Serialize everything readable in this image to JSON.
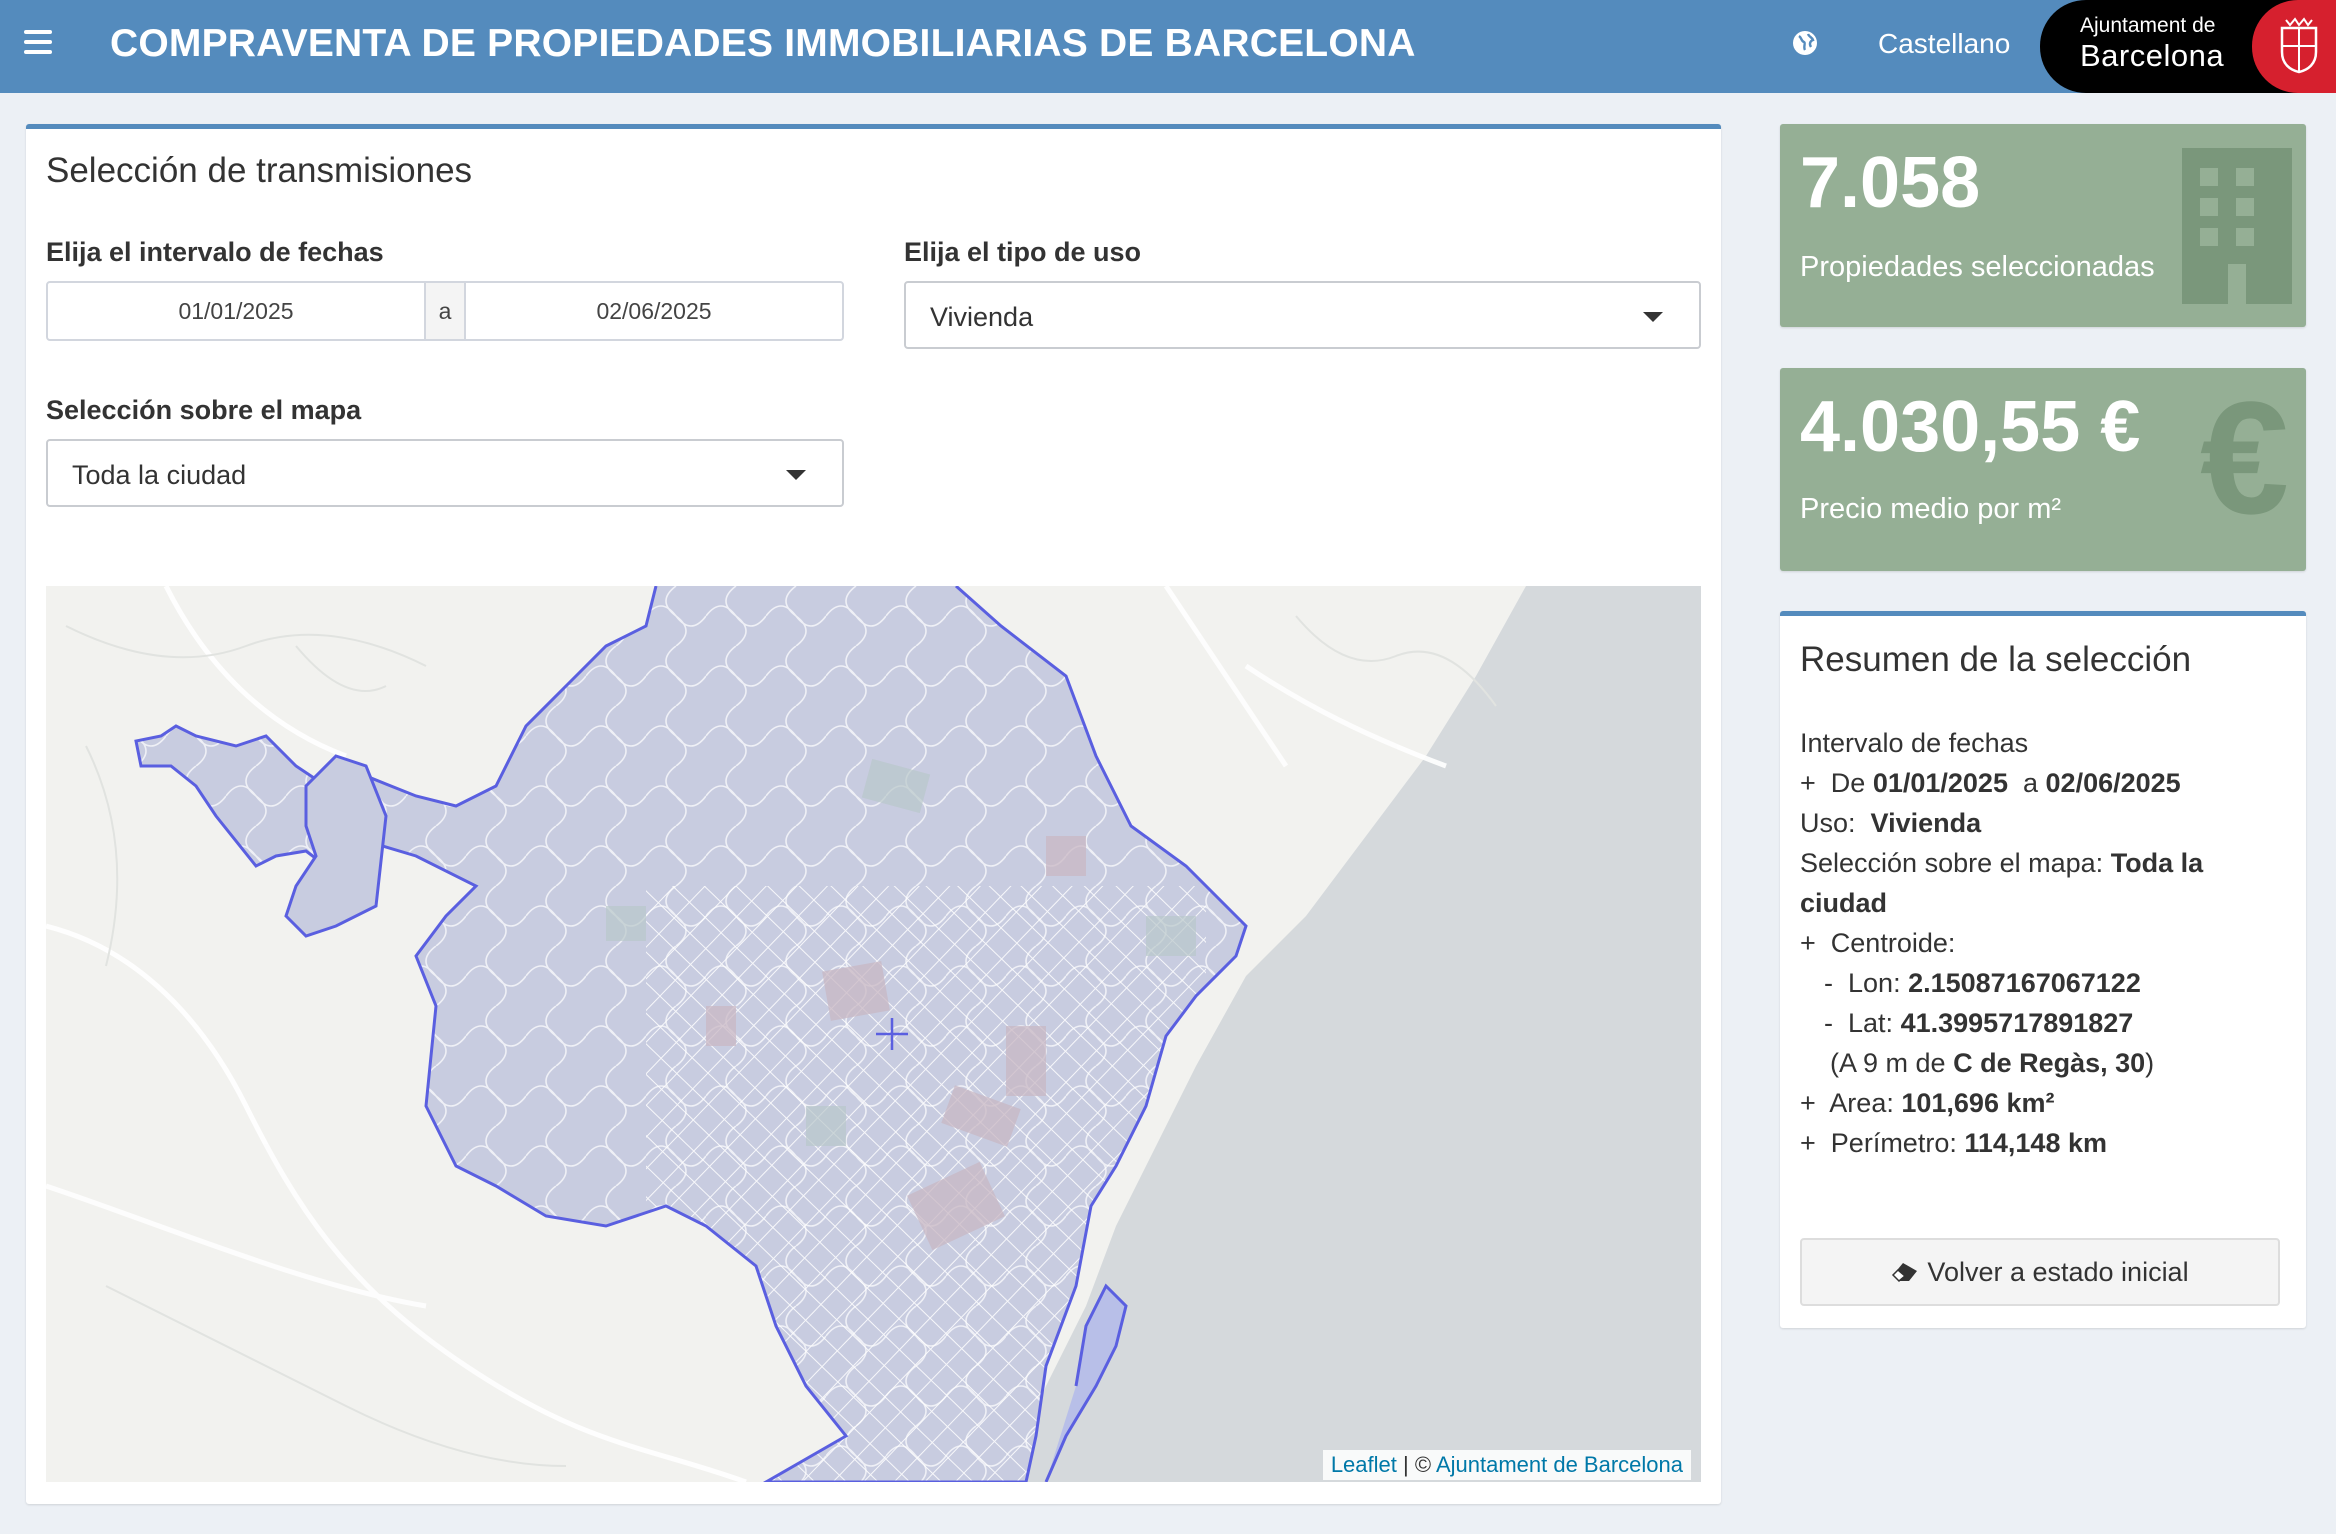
{
  "header": {
    "title": "COMPRAVENTA DE PROPIEDADES IMMOBILIARIAS DE BARCELONA",
    "menu_icon": "hamburger-icon",
    "globe_icon": "globe-icon",
    "language": "Castellano",
    "logo_line1": "Ajuntament de",
    "logo_line2": "Barcelona",
    "brand_color": "#548bbd"
  },
  "filters": {
    "title": "Selección de transmisiones",
    "date_label": "Elija el intervalo de fechas",
    "date_from": "01/01/2025",
    "date_separator": "a",
    "date_to": "02/06/2025",
    "use_label": "Elija el tipo de uso",
    "use_value": "Vivienda",
    "map_label": "Selección sobre el mapa",
    "map_value": "Toda la ciudad"
  },
  "map": {
    "attribution_leaflet": "Leaflet",
    "attribution_sep": " | © ",
    "attribution_source": "Ajuntament de Barcelona",
    "polygon_color": "#5a5fe0"
  },
  "stats": {
    "count_value": "7.058",
    "count_label": "Propiedades seleccionadas",
    "count_icon": "building-icon",
    "price_value": "4.030,55 €",
    "price_label": "Precio medio por m²",
    "price_icon": "euro-icon",
    "box_color": "#95af95"
  },
  "summary": {
    "title": "Resumen de la selección",
    "interval_label": "Intervalo de fechas",
    "plus": "+",
    "minus": "-",
    "de": "De",
    "date_from": "01/01/2025",
    "a": "a",
    "date_to": "02/06/2025",
    "uso_label": "Uso:",
    "uso_value": "Vivienda",
    "map_label": "Selección sobre el mapa:",
    "map_value": "Toda la ciudad",
    "centroid_label": "Centroide:",
    "lon_label": "Lon:",
    "lon_value": "2.15087167067122",
    "lat_label": "Lat:",
    "lat_value": "41.3995717891827",
    "near_prefix": "(A 9 m de",
    "near_street": "C de Regàs, 30",
    "near_suffix": ")",
    "area_label": "Area:",
    "area_value": "101,696 km²",
    "perim_label": "Perímetro:",
    "perim_value": "114,148 km",
    "reset_label": "Volver a estado inicial"
  }
}
